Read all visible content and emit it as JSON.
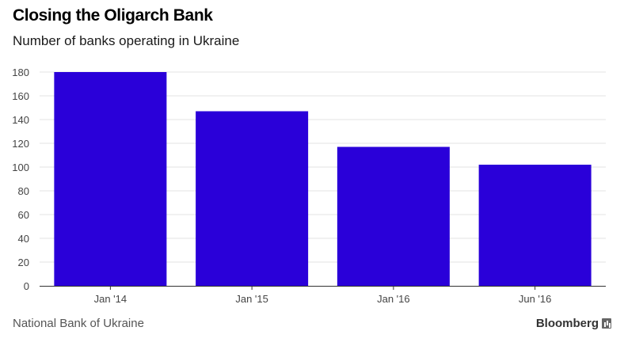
{
  "chart_data": {
    "type": "bar",
    "title": "Closing the Oligarch Bank",
    "subtitle": "Number of banks operating in Ukraine",
    "categories": [
      "Jan '14",
      "Jan '15",
      "Jan '16",
      "Jun '16"
    ],
    "values": [
      180,
      147,
      117,
      102
    ],
    "xlabel": "",
    "ylabel": "",
    "ylim": [
      0,
      180
    ],
    "yticks": [
      0,
      20,
      40,
      60,
      80,
      100,
      120,
      140,
      160,
      180
    ],
    "grid": true,
    "legend": "none",
    "bar_color": "#2a00d9"
  },
  "footer": {
    "source": "National Bank of Ukraine",
    "brand": "Bloomberg"
  }
}
